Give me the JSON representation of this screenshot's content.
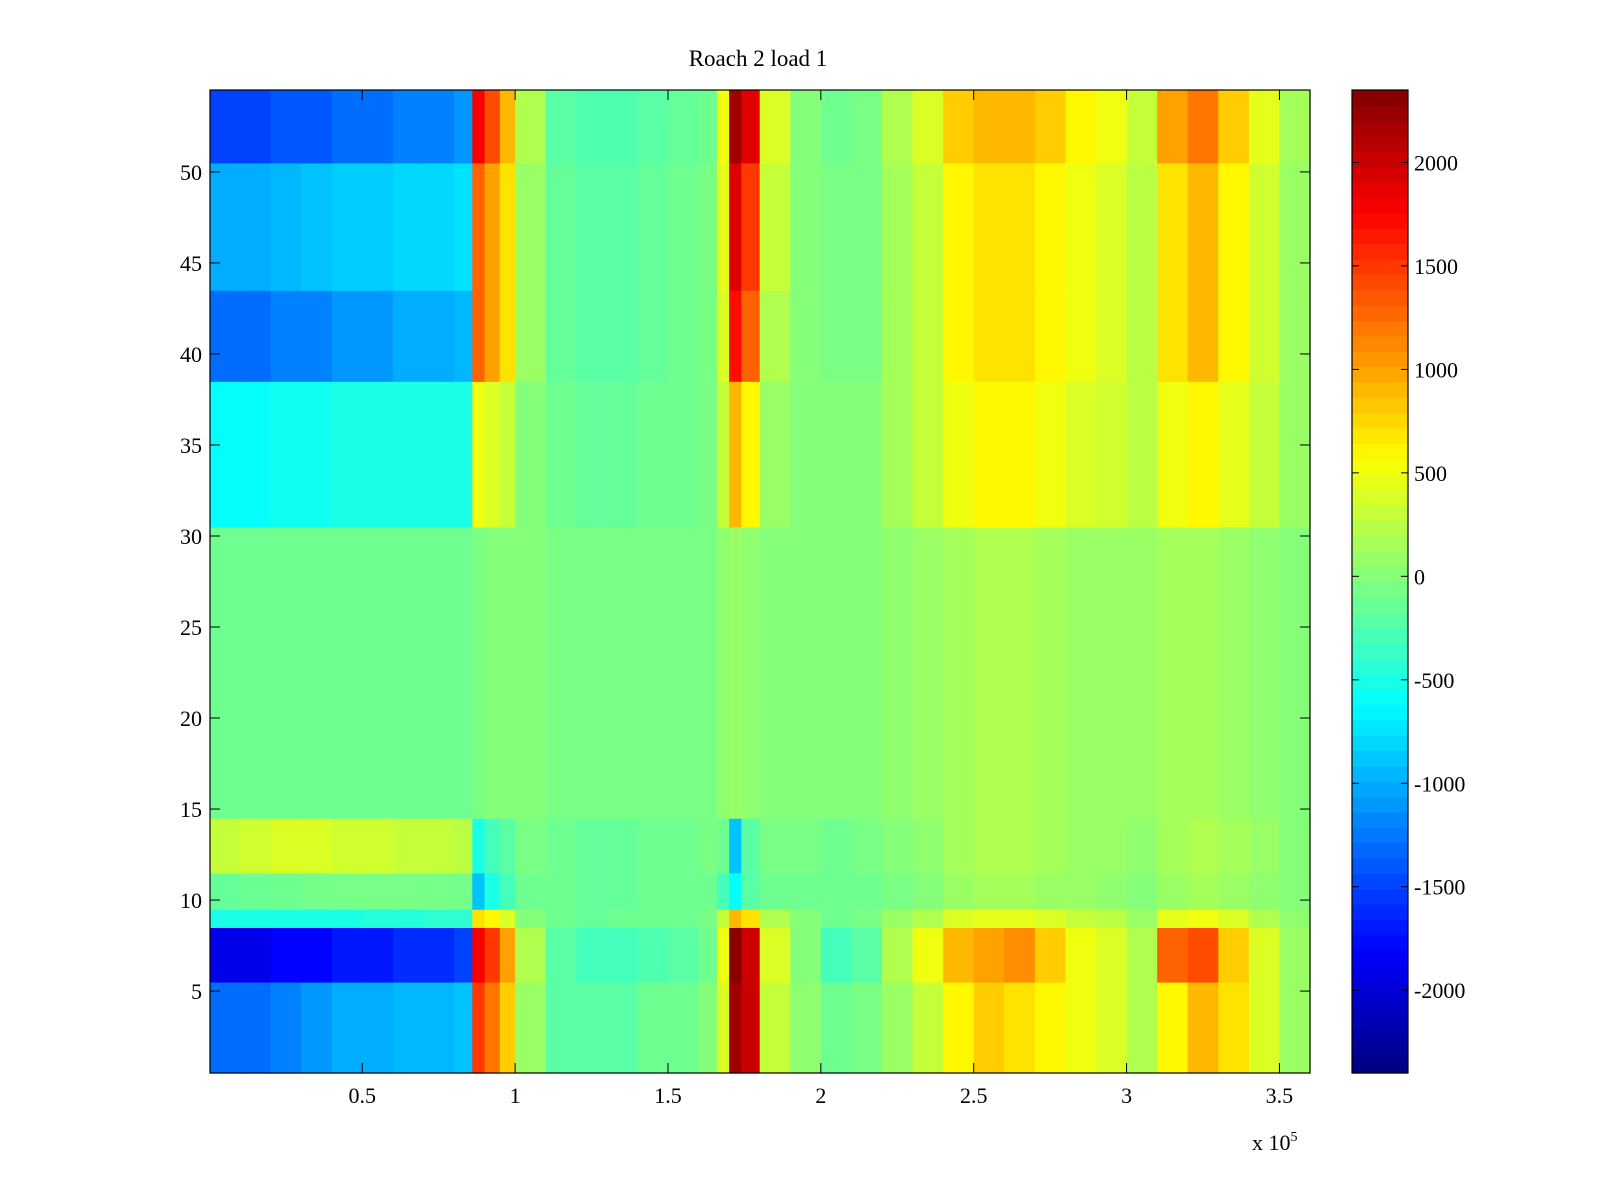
{
  "chart_data": {
    "type": "heatmap",
    "title": "Roach 2 load 1",
    "xlabel": "",
    "ylabel": "",
    "x_multiplier_label": "x 10",
    "x_multiplier_exponent": "5",
    "colormap": "jet",
    "x_range": [
      0.002,
      3.6
    ],
    "y_range": [
      0.5,
      54.5
    ],
    "rows": 54,
    "x_ticks": [
      0.5,
      1,
      1.5,
      2,
      2.5,
      3,
      3.5
    ],
    "x_tick_labels": [
      "0.5",
      "1",
      "1.5",
      "2",
      "2.5",
      "3",
      "3.5"
    ],
    "y_ticks": [
      5,
      10,
      15,
      20,
      25,
      30,
      35,
      40,
      45,
      50
    ],
    "y_tick_labels": [
      "5",
      "10",
      "15",
      "20",
      "25",
      "30",
      "35",
      "40",
      "45",
      "50"
    ],
    "color_range": [
      -2400,
      2350
    ],
    "colorbar_ticks": [
      2000,
      1500,
      1000,
      500,
      0,
      -500,
      -1000,
      -1500,
      -2000
    ],
    "colorbar_tick_labels": [
      "2000",
      "1500",
      "1000",
      "500",
      "0",
      "-500",
      "-1000",
      "-1500",
      "-2000"
    ],
    "colors": {
      "jet_low": "#00008f",
      "jet_mid": "#80ff80",
      "jet_high": "#800000"
    },
    "x_segments": [
      0.002,
      0.1,
      0.2,
      0.3,
      0.4,
      0.5,
      0.6,
      0.7,
      0.8,
      0.86,
      0.9,
      0.95,
      1.0,
      1.1,
      1.2,
      1.3,
      1.4,
      1.5,
      1.6,
      1.66,
      1.7,
      1.74,
      1.8,
      1.9,
      2.0,
      2.1,
      2.2,
      2.3,
      2.4,
      2.5,
      2.6,
      2.7,
      2.8,
      2.9,
      3.0,
      3.1,
      3.2,
      3.3,
      3.4,
      3.5,
      3.6
    ],
    "row_groups": [
      {
        "rows": [
          1,
          5
        ],
        "values": [
          -1300,
          -1300,
          -1200,
          -1100,
          -1000,
          -1000,
          -950,
          -950,
          -900,
          1500,
          1200,
          800,
          100,
          -200,
          -200,
          -200,
          -100,
          -100,
          0,
          400,
          2200,
          2000,
          300,
          50,
          -100,
          -50,
          100,
          300,
          600,
          800,
          700,
          600,
          500,
          400,
          200,
          600,
          900,
          700,
          400,
          100
        ]
      },
      {
        "rows": [
          6,
          8
        ],
        "values": [
          -1900,
          -1900,
          -1800,
          -1800,
          -1700,
          -1700,
          -1600,
          -1600,
          -1500,
          1800,
          1500,
          1000,
          200,
          -200,
          -300,
          -300,
          -250,
          -200,
          -100,
          500,
          2300,
          2000,
          400,
          0,
          -300,
          -200,
          200,
          500,
          900,
          1000,
          1100,
          800,
          500,
          400,
          200,
          1300,
          1400,
          800,
          400,
          100
        ]
      },
      {
        "rows": [
          9,
          9
        ],
        "values": [
          -500,
          -500,
          -500,
          -500,
          -500,
          -450,
          -450,
          -400,
          -400,
          700,
          600,
          400,
          0,
          -100,
          -150,
          -100,
          -100,
          -100,
          -50,
          300,
          900,
          700,
          200,
          0,
          -100,
          -50,
          100,
          200,
          400,
          450,
          450,
          400,
          300,
          250,
          100,
          450,
          500,
          400,
          200,
          50
        ]
      },
      {
        "rows": [
          10,
          11
        ],
        "values": [
          -150,
          -120,
          -100,
          -80,
          -60,
          -60,
          -60,
          -70,
          -80,
          -900,
          -500,
          -300,
          -100,
          -100,
          -150,
          -150,
          -100,
          -100,
          -100,
          -300,
          -600,
          -200,
          -100,
          -100,
          -100,
          -100,
          -50,
          0,
          100,
          150,
          150,
          100,
          100,
          50,
          0,
          100,
          150,
          100,
          50,
          0
        ]
      },
      {
        "rows": [
          12,
          14
        ],
        "values": [
          300,
          350,
          400,
          400,
          350,
          350,
          300,
          300,
          250,
          -500,
          -300,
          -200,
          -50,
          -100,
          -150,
          -150,
          -100,
          -100,
          -50,
          -100,
          -900,
          -200,
          -50,
          -50,
          -100,
          -50,
          0,
          50,
          150,
          200,
          200,
          150,
          100,
          100,
          50,
          150,
          200,
          150,
          100,
          0
        ]
      },
      {
        "rows": [
          15,
          30
        ],
        "values": [
          -100,
          -100,
          -100,
          -100,
          -100,
          -100,
          -100,
          -100,
          -100,
          -50,
          0,
          0,
          0,
          -50,
          -50,
          -50,
          -50,
          -50,
          -50,
          50,
          100,
          50,
          0,
          0,
          0,
          0,
          50,
          100,
          150,
          200,
          200,
          150,
          100,
          100,
          100,
          150,
          150,
          100,
          50,
          0
        ]
      },
      {
        "rows": [
          31,
          38
        ],
        "values": [
          -600,
          -600,
          -550,
          -550,
          -500,
          -500,
          -500,
          -500,
          -500,
          500,
          400,
          300,
          0,
          -100,
          -150,
          -150,
          -100,
          -100,
          -50,
          300,
          900,
          600,
          100,
          0,
          0,
          0,
          150,
          300,
          500,
          600,
          600,
          500,
          400,
          350,
          250,
          500,
          600,
          450,
          300,
          100
        ]
      },
      {
        "rows": [
          39,
          43
        ],
        "values": [
          -1300,
          -1300,
          -1200,
          -1200,
          -1100,
          -1100,
          -1000,
          -1000,
          -950,
          1300,
          1000,
          700,
          100,
          -150,
          -200,
          -200,
          -150,
          -100,
          -50,
          400,
          1700,
          1300,
          200,
          0,
          -50,
          -50,
          150,
          300,
          600,
          700,
          700,
          600,
          500,
          400,
          250,
          700,
          900,
          600,
          350,
          100
        ]
      },
      {
        "rows": [
          44,
          50
        ],
        "values": [
          -1000,
          -1000,
          -950,
          -900,
          -850,
          -850,
          -800,
          -800,
          -750,
          1300,
          1000,
          700,
          100,
          -150,
          -200,
          -200,
          -150,
          -100,
          -50,
          450,
          1900,
          1500,
          300,
          0,
          -50,
          -50,
          150,
          300,
          600,
          700,
          700,
          600,
          500,
          400,
          250,
          700,
          900,
          600,
          350,
          100
        ]
      },
      {
        "rows": [
          51,
          54
        ],
        "values": [
          -1500,
          -1500,
          -1400,
          -1400,
          -1300,
          -1300,
          -1200,
          -1200,
          -1100,
          1800,
          1400,
          900,
          200,
          -200,
          -250,
          -250,
          -200,
          -150,
          -100,
          500,
          2200,
          1900,
          400,
          0,
          -100,
          -50,
          200,
          400,
          800,
          900,
          900,
          800,
          600,
          500,
          300,
          1000,
          1200,
          800,
          450,
          150
        ]
      }
    ]
  }
}
